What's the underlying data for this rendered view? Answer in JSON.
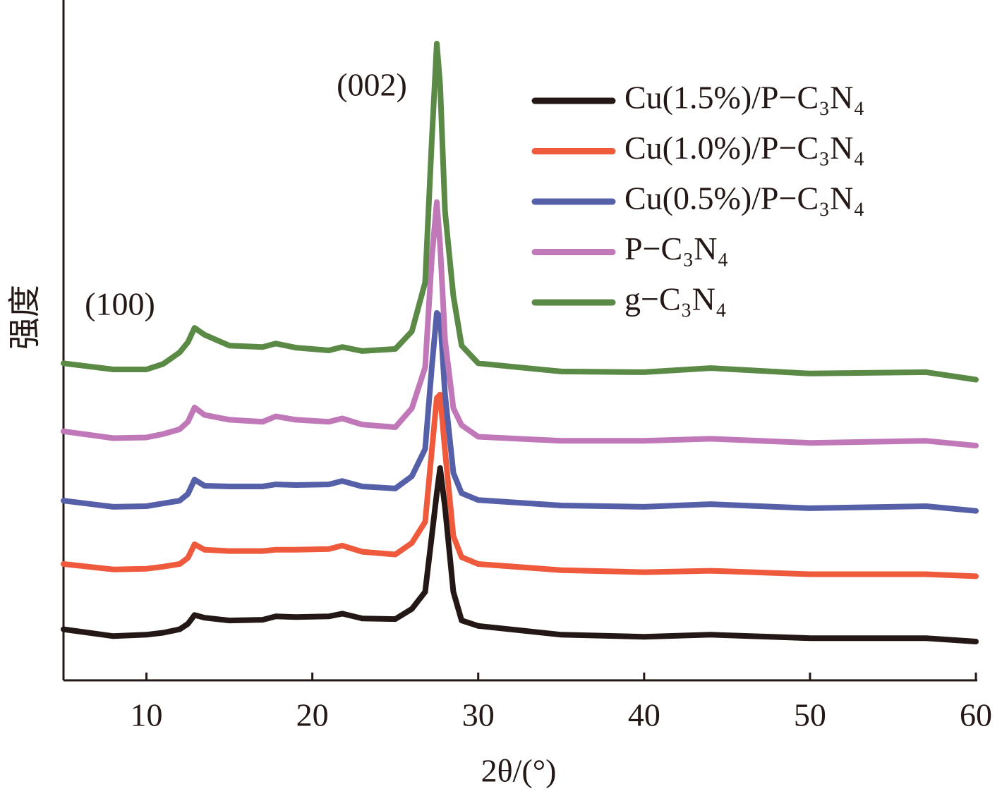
{
  "chart_data": {
    "type": "line",
    "x_label": "2θ/(°)",
    "y_label": "强度",
    "annotations": [
      "(002)",
      "(100)"
    ],
    "xlim": [
      5,
      60
    ],
    "xticks": [
      10,
      20,
      30,
      40,
      50,
      60
    ],
    "ylim": [
      0,
      100
    ],
    "x": [
      5,
      8,
      10,
      11,
      12,
      12.5,
      12.9,
      13.5,
      15,
      17,
      17.8,
      19,
      21,
      21.8,
      23,
      25,
      26,
      26.8,
      27.2,
      27.5,
      27.7,
      28.0,
      28.5,
      29,
      30,
      35,
      40,
      44,
      50,
      57,
      60
    ],
    "legend": "upper right",
    "series": [
      {
        "name": "Cu(1.5%)/P−C₃N₄",
        "color": "#231815",
        "values": [
          7.5,
          6.5,
          6.7,
          7.0,
          7.5,
          8.3,
          9.6,
          9.2,
          8.8,
          8.9,
          9.4,
          9.3,
          9.4,
          9.8,
          9.1,
          9.0,
          10.5,
          13.0,
          21.2,
          27.5,
          31.2,
          25.4,
          13.0,
          8.8,
          8.0,
          6.7,
          6.4,
          6.7,
          6.2,
          6.2,
          5.7
        ]
      },
      {
        "name": "Cu(1.0%)/P−C₃N₄",
        "color": "#ef5a3c",
        "values": [
          17.1,
          16.3,
          16.4,
          16.7,
          17.1,
          18.0,
          20.0,
          19.2,
          19.0,
          19.0,
          19.2,
          19.2,
          19.3,
          19.8,
          18.9,
          18.5,
          20.2,
          23.3,
          33.7,
          41.5,
          42.0,
          33.7,
          21.2,
          18.1,
          17.1,
          16.2,
          15.9,
          16.1,
          15.6,
          15.6,
          15.3
        ]
      },
      {
        "name": "Cu(0.5%)/P−C₃N₄",
        "color": "#5560a8",
        "values": [
          26.4,
          25.5,
          25.6,
          26.0,
          26.4,
          27.4,
          29.5,
          28.6,
          28.5,
          28.5,
          28.8,
          28.7,
          28.8,
          29.3,
          28.5,
          28.2,
          30.0,
          34.0,
          46.0,
          54.0,
          53.5,
          42.0,
          30.5,
          27.5,
          26.5,
          25.7,
          25.5,
          25.9,
          25.3,
          25.6,
          24.9
        ]
      },
      {
        "name": "P−C₃N₄",
        "color": "#c078b8",
        "values": [
          36.6,
          35.6,
          35.7,
          36.2,
          36.9,
          38.0,
          40.1,
          39.0,
          38.3,
          38.0,
          38.8,
          38.3,
          38.0,
          38.5,
          37.6,
          37.2,
          40.0,
          46.0,
          62.0,
          70.3,
          64.0,
          50.0,
          40.0,
          37.5,
          35.8,
          35.2,
          35.2,
          35.5,
          34.9,
          35.2,
          34.5
        ]
      },
      {
        "name": "g−C₃N₄",
        "color": "#5a8a46",
        "values": [
          46.6,
          45.7,
          45.7,
          46.5,
          48.2,
          49.7,
          51.8,
          50.8,
          49.2,
          49.0,
          49.5,
          48.9,
          48.5,
          49.0,
          48.4,
          48.7,
          51.3,
          58.5,
          79.3,
          93.6,
          87.6,
          68.9,
          56.5,
          49.2,
          46.6,
          45.4,
          45.3,
          45.9,
          45.1,
          45.3,
          44.2
        ]
      }
    ]
  }
}
